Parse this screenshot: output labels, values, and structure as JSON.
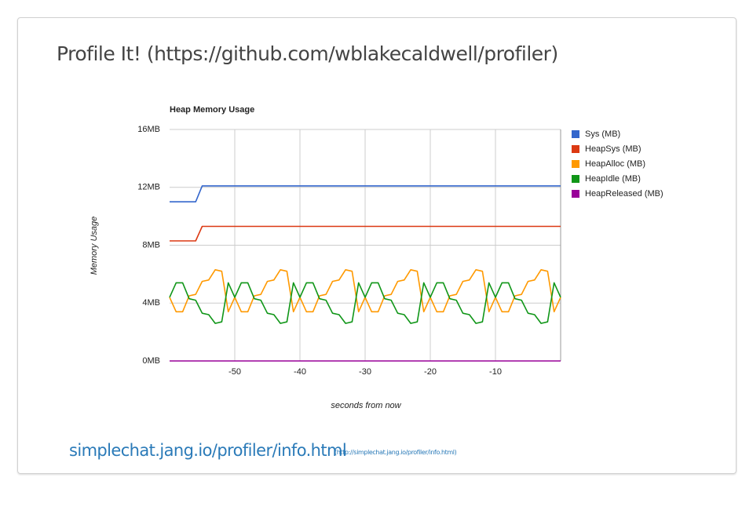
{
  "slide": {
    "title": "Profile It! (https://github.com/wblakecaldwell/profiler)",
    "link": "simplechat.jang.io/profiler/info.html",
    "link_note": "(http://simplechat.jang.io/profiler/info.html)"
  },
  "chart_data": {
    "type": "line",
    "title": "Heap Memory Usage",
    "xlabel": "seconds from now",
    "ylabel": "Memory Usage",
    "x": [
      -60,
      -59,
      -58,
      -57,
      -56,
      -55,
      -54,
      -53,
      -52,
      -51,
      -50,
      -49,
      -48,
      -47,
      -46,
      -45,
      -44,
      -43,
      -42,
      -41,
      -40,
      -39,
      -38,
      -37,
      -36,
      -35,
      -34,
      -33,
      -32,
      -31,
      -30,
      -29,
      -28,
      -27,
      -26,
      -25,
      -24,
      -23,
      -22,
      -21,
      -20,
      -19,
      -18,
      -17,
      -16,
      -15,
      -14,
      -13,
      -12,
      -11,
      -10,
      -9,
      -8,
      -7,
      -6,
      -5,
      -4,
      -3,
      -2,
      -1,
      0
    ],
    "xlim": [
      -60,
      0
    ],
    "xticks": [
      -50,
      -40,
      -30,
      -20,
      -10
    ],
    "ylim": [
      0,
      16
    ],
    "yticks": [
      {
        "value": 0,
        "label": "0MB"
      },
      {
        "value": 4,
        "label": "4MB"
      },
      {
        "value": 8,
        "label": "8MB"
      },
      {
        "value": 12,
        "label": "12MB"
      },
      {
        "value": 16,
        "label": "16MB"
      }
    ],
    "grid": true,
    "legend": "right",
    "series": [
      {
        "name": "Sys (MB)",
        "color": "#3366cc",
        "values": [
          11.0,
          11.0,
          11.0,
          11.0,
          11.0,
          12.1,
          12.1,
          12.1,
          12.1,
          12.1,
          12.1,
          12.1,
          12.1,
          12.1,
          12.1,
          12.1,
          12.1,
          12.1,
          12.1,
          12.1,
          12.1,
          12.1,
          12.1,
          12.1,
          12.1,
          12.1,
          12.1,
          12.1,
          12.1,
          12.1,
          12.1,
          12.1,
          12.1,
          12.1,
          12.1,
          12.1,
          12.1,
          12.1,
          12.1,
          12.1,
          12.1,
          12.1,
          12.1,
          12.1,
          12.1,
          12.1,
          12.1,
          12.1,
          12.1,
          12.1,
          12.1,
          12.1,
          12.1,
          12.1,
          12.1,
          12.1,
          12.1,
          12.1,
          12.1,
          12.1,
          12.1
        ]
      },
      {
        "name": "HeapSys (MB)",
        "color": "#dc3912",
        "values": [
          8.3,
          8.3,
          8.3,
          8.3,
          8.3,
          9.3,
          9.3,
          9.3,
          9.3,
          9.3,
          9.3,
          9.3,
          9.3,
          9.3,
          9.3,
          9.3,
          9.3,
          9.3,
          9.3,
          9.3,
          9.3,
          9.3,
          9.3,
          9.3,
          9.3,
          9.3,
          9.3,
          9.3,
          9.3,
          9.3,
          9.3,
          9.3,
          9.3,
          9.3,
          9.3,
          9.3,
          9.3,
          9.3,
          9.3,
          9.3,
          9.3,
          9.3,
          9.3,
          9.3,
          9.3,
          9.3,
          9.3,
          9.3,
          9.3,
          9.3,
          9.3,
          9.3,
          9.3,
          9.3,
          9.3,
          9.3,
          9.3,
          9.3,
          9.3,
          9.3,
          9.3
        ]
      },
      {
        "name": "HeapAlloc (MB)",
        "color": "#ff9900",
        "values": [
          4.4,
          3.4,
          3.4,
          4.5,
          4.6,
          5.5,
          5.6,
          6.3,
          6.2,
          3.4,
          4.4,
          3.4,
          3.4,
          4.5,
          4.6,
          5.5,
          5.6,
          6.3,
          6.2,
          3.4,
          4.4,
          3.4,
          3.4,
          4.5,
          4.6,
          5.5,
          5.6,
          6.3,
          6.2,
          3.4,
          4.4,
          3.4,
          3.4,
          4.5,
          4.6,
          5.5,
          5.6,
          6.3,
          6.2,
          3.4,
          4.4,
          3.4,
          3.4,
          4.5,
          4.6,
          5.5,
          5.6,
          6.3,
          6.2,
          3.4,
          4.4,
          3.4,
          3.4,
          4.5,
          4.6,
          5.5,
          5.6,
          6.3,
          6.2,
          3.4,
          4.4
        ]
      },
      {
        "name": "HeapIdle (MB)",
        "color": "#109618",
        "values": [
          4.4,
          5.4,
          5.4,
          4.3,
          4.2,
          3.3,
          3.2,
          2.6,
          2.7,
          5.4,
          4.4,
          5.4,
          5.4,
          4.3,
          4.2,
          3.3,
          3.2,
          2.6,
          2.7,
          5.4,
          4.4,
          5.4,
          5.4,
          4.3,
          4.2,
          3.3,
          3.2,
          2.6,
          2.7,
          5.4,
          4.4,
          5.4,
          5.4,
          4.3,
          4.2,
          3.3,
          3.2,
          2.6,
          2.7,
          5.4,
          4.4,
          5.4,
          5.4,
          4.3,
          4.2,
          3.3,
          3.2,
          2.6,
          2.7,
          5.4,
          4.4,
          5.4,
          5.4,
          4.3,
          4.2,
          3.3,
          3.2,
          2.6,
          2.7,
          5.4,
          4.4
        ]
      },
      {
        "name": "HeapReleased (MB)",
        "color": "#990099",
        "values": [
          0,
          0,
          0,
          0,
          0,
          0,
          0,
          0,
          0,
          0,
          0,
          0,
          0,
          0,
          0,
          0,
          0,
          0,
          0,
          0,
          0,
          0,
          0,
          0,
          0,
          0,
          0,
          0,
          0,
          0,
          0,
          0,
          0,
          0,
          0,
          0,
          0,
          0,
          0,
          0,
          0,
          0,
          0,
          0,
          0,
          0,
          0,
          0,
          0,
          0,
          0,
          0,
          0,
          0,
          0,
          0,
          0,
          0,
          0,
          0,
          0
        ]
      }
    ]
  }
}
